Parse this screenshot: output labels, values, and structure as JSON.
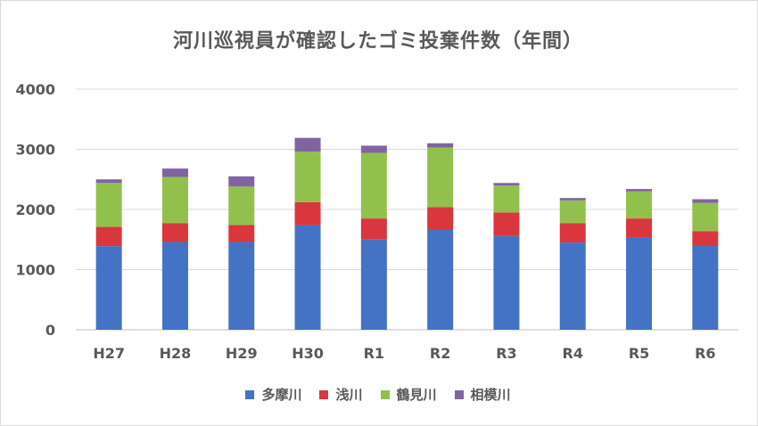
{
  "chart_data": {
    "type": "bar",
    "stacked": true,
    "title": "河川巡視員が確認したゴミ投棄件数（年間）",
    "categories": [
      "H27",
      "H28",
      "H29",
      "H30",
      "R1",
      "R2",
      "R3",
      "R4",
      "R5",
      "R6"
    ],
    "ylim": [
      0,
      4000
    ],
    "yticks": [
      "0",
      "1000",
      "2000",
      "3000",
      "4000"
    ],
    "ytick_values": [
      0,
      1000,
      2000,
      3000,
      4000
    ],
    "grid": true,
    "legend_position": "bottom",
    "series": [
      {
        "name": "多摩川",
        "color": "#4472c4",
        "values": [
          1390,
          1460,
          1460,
          1740,
          1500,
          1660,
          1560,
          1450,
          1540,
          1400
        ]
      },
      {
        "name": "浅川",
        "color": "#d9363e",
        "values": [
          320,
          310,
          280,
          380,
          350,
          380,
          390,
          320,
          310,
          240
        ]
      },
      {
        "name": "鶴見川",
        "color": "#92c04c",
        "values": [
          730,
          770,
          640,
          840,
          1090,
          990,
          450,
          380,
          450,
          470
        ]
      },
      {
        "name": "相模川",
        "color": "#8064a2",
        "values": [
          60,
          140,
          170,
          230,
          120,
          70,
          40,
          40,
          40,
          60
        ]
      }
    ]
  }
}
